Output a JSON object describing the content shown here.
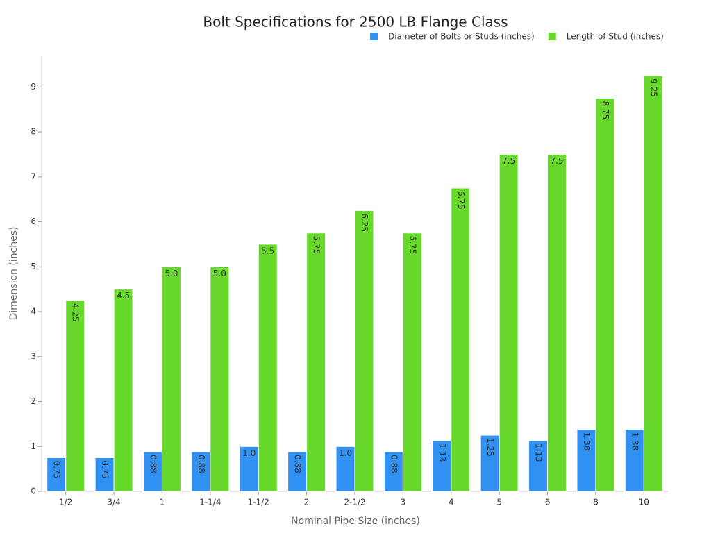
{
  "chart_data": {
    "type": "bar",
    "title": "Bolt Specifications for 2500 LB Flange Class",
    "x_label": "Nominal Pipe Size (inches)",
    "y_label": "Dimension (inches)",
    "categories": [
      "1/2",
      "3/4",
      "1",
      "1-1/4",
      "1-1/2",
      "2",
      "2-1/2",
      "3",
      "4",
      "5",
      "6",
      "8",
      "10"
    ],
    "series": [
      {
        "name": "Diameter of Bolts or Studs (inches)",
        "color": "#3091f2",
        "values": [
          0.75,
          0.75,
          0.88,
          0.88,
          1,
          0.88,
          1,
          0.88,
          1.13,
          1.25,
          1.13,
          1.38,
          1.38
        ],
        "value_labels": [
          "0.75",
          "0.75",
          "0.88",
          "0.88",
          "1.0",
          "0.88",
          "1.0",
          "0.88",
          "1.13",
          "1.25",
          "1.13",
          "1.38",
          "1.38"
        ]
      },
      {
        "name": "Length of Stud (inches)",
        "color": "#66d92a",
        "values": [
          4.25,
          4.5,
          5,
          5,
          5.5,
          5.75,
          6.25,
          5.75,
          6.75,
          7.5,
          7.5,
          8.75,
          9.25
        ],
        "value_labels": [
          "4.25",
          "4.5",
          "5.0",
          "5.0",
          "5.5",
          "5.75",
          "6.25",
          "5.75",
          "6.75",
          "7.5",
          "7.5",
          "8.75",
          "9.25"
        ]
      }
    ],
    "ylim": [
      0,
      9.7
    ],
    "yticks": [
      0,
      1,
      2,
      3,
      4,
      5,
      6,
      7,
      8,
      9
    ],
    "grid": false,
    "legend": "top-right"
  }
}
